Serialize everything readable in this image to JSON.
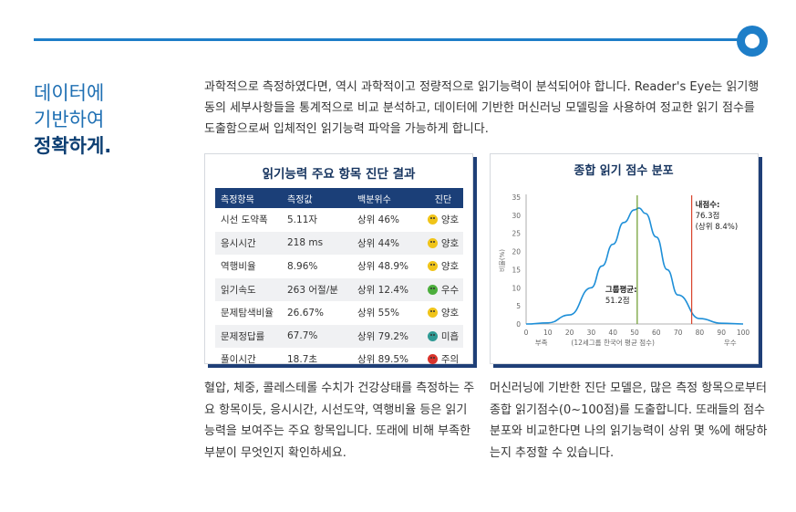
{
  "colors": {
    "accent": "#1e7ec8",
    "navy": "#1b3f78",
    "curve": "#1e8fd8",
    "avg_line": "#6a9a2a",
    "my_line": "#d9442c",
    "good": "#f0c419",
    "excellent": "#4cae3c",
    "insufficient": "#2f9a94",
    "caution": "#d9342c"
  },
  "side": {
    "line1": "데이터에",
    "line2": "기반하여",
    "line3": "정확하게."
  },
  "intro": "과학적으로 측정하였다면, 역시 과학적이고 정량적으로 읽기능력이 분석되어야 합니다. Reader's Eye는 읽기행동의 세부사항들을 통계적으로 비교 분석하고, 데이터에 기반한 머신러닝 모델링을 사용하여 정교한 읽기 점수를 도출함으로써 입체적인 읽기능력 파악을 가능하게 합니다.",
  "table": {
    "title": "읽기능력 주요 항목 진단 결과",
    "headers": [
      "측정항목",
      "측정값",
      "백분위수",
      "진단"
    ],
    "rows": [
      {
        "item": "시선 도약폭",
        "value": "5.11자",
        "pct": "상위 46%",
        "diag": "양호",
        "icon": "good-face-icon"
      },
      {
        "item": "응시시간",
        "value": "218 ms",
        "pct": "상위 44%",
        "diag": "양호",
        "icon": "good-face-icon"
      },
      {
        "item": "역행비율",
        "value": "8.96%",
        "pct": "상위 48.9%",
        "diag": "양호",
        "icon": "good-face-icon"
      },
      {
        "item": "읽기속도",
        "value": "263 어절/분",
        "pct": "상위 12.4%",
        "diag": "우수",
        "icon": "excellent-face-icon"
      },
      {
        "item": "문제탐색비율",
        "value": "26.67%",
        "pct": "상위 55%",
        "diag": "양호",
        "icon": "good-face-icon"
      },
      {
        "item": "문제정답률",
        "value": "67.7%",
        "pct": "상위 79.2%",
        "diag": "미흡",
        "icon": "insufficient-face-icon"
      },
      {
        "item": "풀이시간",
        "value": "18.7초",
        "pct": "상위 89.5%",
        "diag": "주의",
        "icon": "caution-face-icon"
      }
    ]
  },
  "chart_data": {
    "type": "line",
    "title": "종합 읽기 점수 분포",
    "ylabel": "비율(%)",
    "xlim": [
      0,
      100
    ],
    "ylim": [
      0,
      35
    ],
    "xticks": [
      0,
      10,
      20,
      30,
      40,
      50,
      60,
      70,
      80,
      90,
      100
    ],
    "yticks": [
      0,
      5,
      10,
      15,
      20,
      25,
      30,
      35
    ],
    "x": [
      0,
      10,
      20,
      30,
      35,
      40,
      45,
      50,
      52,
      55,
      60,
      65,
      70,
      80,
      90,
      100
    ],
    "y": [
      0,
      0.3,
      2.5,
      10,
      16,
      22,
      28,
      31.5,
      32,
      30.5,
      24,
      15,
      8,
      1.5,
      0.2,
      0
    ],
    "axis_notes": {
      "left": "부족",
      "center": "(12세그룹 한국어 평균 점수)",
      "right": "우수"
    },
    "markers": [
      {
        "x": 51.2,
        "label1": "그룹평균:",
        "label2": "51.2점"
      },
      {
        "x": 76.3,
        "label1": "내점수:",
        "label2": "76.3점",
        "label3": "(상위 8.4%)"
      }
    ]
  },
  "captions": {
    "left": "혈압, 체중, 콜레스테롤 수치가 건강상태를 측정하는 주요 항목이듯, 응시시간, 시선도약, 역행비율 등은 읽기능력을 보여주는 주요 항목입니다. 또래에 비해 부족한 부분이 무엇인지 확인하세요.",
    "right": "머신러닝에 기반한 진단 모델은, 많은 측정 항목으로부터 종합 읽기점수(0~100점)를 도출합니다. 또래들의 점수분포와 비교한다면 나의 읽기능력이 상위 몇 %에 해당하는지 추정할 수 있습니다."
  }
}
